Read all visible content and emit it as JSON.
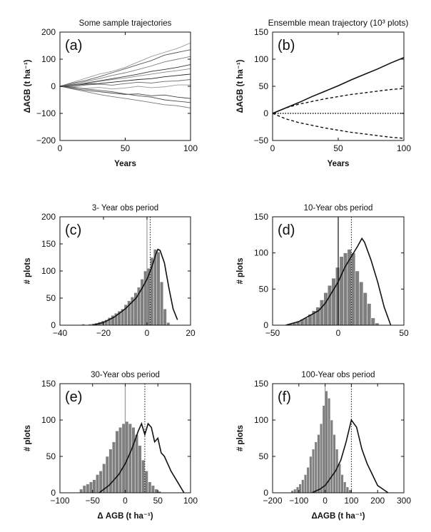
{
  "figure": {
    "background": "#ffffff",
    "bar_color": "#7f7f7f"
  },
  "chart_data": [
    {
      "id": "a",
      "type": "line",
      "title": "Some sample trajectories",
      "panel_label": "(a)",
      "xlabel": "Years",
      "ylabel": "ΔAGB (t ha⁻¹)",
      "xlim": [
        0,
        100
      ],
      "ylim": [
        -200,
        200
      ],
      "xticks": [
        0,
        50,
        100
      ],
      "yticks": [
        -200,
        -100,
        0,
        100,
        200
      ],
      "x": [
        0,
        10,
        20,
        30,
        40,
        50,
        60,
        70,
        80,
        90,
        100
      ],
      "series": [
        {
          "values": [
            0,
            15,
            30,
            45,
            55,
            70,
            90,
            110,
            125,
            140,
            160
          ]
        },
        {
          "values": [
            0,
            12,
            22,
            35,
            50,
            65,
            80,
            95,
            115,
            125,
            135
          ]
        },
        {
          "values": [
            0,
            8,
            18,
            28,
            40,
            50,
            62,
            75,
            90,
            100,
            110
          ]
        },
        {
          "values": [
            0,
            5,
            12,
            20,
            28,
            36,
            45,
            55,
            62,
            70,
            80
          ]
        },
        {
          "values": [
            0,
            6,
            10,
            18,
            25,
            30,
            38,
            45,
            52,
            58,
            65
          ]
        },
        {
          "values": [
            0,
            3,
            8,
            10,
            15,
            20,
            25,
            28,
            35,
            40,
            45
          ]
        },
        {
          "values": [
            0,
            -2,
            5,
            8,
            4,
            10,
            15,
            12,
            18,
            20,
            25
          ]
        },
        {
          "values": [
            0,
            -5,
            -8,
            -4,
            -10,
            -6,
            0,
            -5,
            -2,
            5,
            5
          ]
        },
        {
          "values": [
            0,
            -8,
            -15,
            -20,
            -25,
            -30,
            -28,
            -35,
            -32,
            -40,
            -45
          ]
        },
        {
          "values": [
            0,
            -10,
            -20,
            -30,
            -38,
            -45,
            -52,
            -60,
            -68,
            -72,
            -80
          ]
        },
        {
          "values": [
            0,
            -3,
            -10,
            -15,
            -20,
            -28,
            -35,
            -40,
            -50,
            -55,
            -60
          ]
        }
      ]
    },
    {
      "id": "b",
      "type": "line",
      "title": "Ensemble mean trajectory (10³ plots)",
      "panel_label": "(b)",
      "xlabel": "Years",
      "ylabel": "ΔAGB (t ha⁻¹)",
      "xlim": [
        0,
        100
      ],
      "ylim": [
        -50,
        150
      ],
      "xticks": [
        0,
        50,
        100
      ],
      "yticks": [
        -50,
        0,
        50,
        100,
        150
      ],
      "x": [
        0,
        10,
        20,
        30,
        40,
        50,
        60,
        70,
        80,
        90,
        100
      ],
      "series": [
        {
          "style": "solid",
          "values": [
            0,
            10,
            20,
            31,
            41,
            51,
            62,
            72,
            82,
            93,
            103
          ]
        },
        {
          "style": "dashed",
          "values": [
            0,
            10,
            17,
            22,
            27,
            31,
            35,
            38,
            41,
            44,
            46
          ]
        },
        {
          "style": "dotted",
          "values": [
            0,
            0,
            0,
            0,
            0,
            0,
            0,
            0,
            0,
            0,
            0
          ]
        },
        {
          "style": "dashed",
          "values": [
            0,
            -10,
            -17,
            -22,
            -27,
            -31,
            -35,
            -38,
            -41,
            -44,
            -46
          ]
        }
      ]
    },
    {
      "id": "c",
      "type": "bar",
      "title": "3- Year obs period",
      "panel_label": "(c)",
      "xlabel": "",
      "ylabel": "# plots",
      "xlim": [
        -40,
        20
      ],
      "ylim": [
        0,
        200
      ],
      "xticks": [
        -40,
        -20,
        0,
        20
      ],
      "yticks": [
        0,
        50,
        100,
        150,
        200
      ],
      "bin_width": 1.5,
      "bins": [
        -30,
        -28.5,
        -27,
        -25.5,
        -24,
        -22.5,
        -21,
        -19.5,
        -18,
        -16.5,
        -15,
        -13.5,
        -12,
        -10.5,
        -9,
        -7.5,
        -6,
        -4.5,
        -3,
        -1.5,
        0,
        1.5,
        3,
        4.5,
        6,
        7.5,
        9
      ],
      "values": [
        2,
        1,
        2,
        3,
        4,
        6,
        8,
        10,
        14,
        18,
        22,
        26,
        30,
        38,
        45,
        52,
        60,
        70,
        85,
        100,
        105,
        125,
        140,
        135,
        80,
        30,
        5
      ],
      "curve": {
        "x": [
          -25,
          -20,
          -15,
          -10,
          -5,
          -2,
          0,
          2,
          4,
          5,
          6,
          8,
          10,
          12,
          14
        ],
        "y": [
          0,
          5,
          15,
          30,
          50,
          70,
          85,
          105,
          130,
          140,
          138,
          115,
          70,
          30,
          10
        ]
      },
      "vlines": [
        {
          "x": 0,
          "style": "solid-gray"
        },
        {
          "x": 1.5,
          "style": "dotted"
        }
      ]
    },
    {
      "id": "d",
      "type": "bar",
      "title": "10-Year obs period",
      "panel_label": "(d)",
      "xlabel": "",
      "ylabel": "# plots",
      "xlim": [
        -50,
        50
      ],
      "ylim": [
        0,
        150
      ],
      "xticks": [
        -50,
        0,
        50
      ],
      "yticks": [
        0,
        50,
        100,
        150
      ],
      "bin_width": 3,
      "bins": [
        -38,
        -35,
        -32,
        -29,
        -26,
        -23,
        -20,
        -17,
        -14,
        -11,
        -8,
        -5,
        -2,
        1,
        4,
        7,
        10,
        13,
        16,
        19,
        22,
        25,
        28
      ],
      "values": [
        2,
        3,
        5,
        8,
        10,
        15,
        20,
        25,
        35,
        45,
        55,
        65,
        80,
        95,
        100,
        105,
        100,
        75,
        60,
        45,
        30,
        10,
        3
      ],
      "curve": {
        "x": [
          -40,
          -30,
          -20,
          -15,
          -10,
          -5,
          0,
          5,
          10,
          15,
          18,
          20,
          25,
          30,
          35,
          40
        ],
        "y": [
          0,
          5,
          15,
          20,
          30,
          45,
          60,
          80,
          95,
          110,
          120,
          115,
          90,
          60,
          25,
          0
        ]
      },
      "vlines": [
        {
          "x": 0,
          "style": "solid-black"
        },
        {
          "x": 10,
          "style": "dotted"
        }
      ]
    },
    {
      "id": "e",
      "type": "bar",
      "title": "30-Year obs period",
      "panel_label": "(e)",
      "xlabel": "Δ AGB (t ha⁻¹)",
      "ylabel": "# plots",
      "xlim": [
        -100,
        100
      ],
      "ylim": [
        0,
        150
      ],
      "xticks": [
        -100,
        -50,
        0,
        50,
        100
      ],
      "yticks": [
        0,
        50,
        100,
        150
      ],
      "bin_width": 5,
      "bins": [
        -70,
        -65,
        -60,
        -55,
        -50,
        -45,
        -40,
        -35,
        -30,
        -25,
        -20,
        -15,
        -10,
        -5,
        0,
        5,
        10,
        15,
        20,
        25,
        30,
        35,
        40,
        45,
        50
      ],
      "values": [
        5,
        10,
        12,
        15,
        18,
        25,
        30,
        40,
        50,
        60,
        70,
        85,
        90,
        95,
        98,
        95,
        90,
        80,
        65,
        45,
        30,
        15,
        10,
        5,
        2
      ],
      "curve": {
        "x": [
          -40,
          -25,
          -10,
          0,
          10,
          20,
          25,
          30,
          35,
          40,
          45,
          50,
          55,
          60,
          70,
          80,
          90
        ],
        "y": [
          0,
          10,
          25,
          40,
          60,
          85,
          95,
          80,
          95,
          90,
          70,
          75,
          55,
          50,
          30,
          15,
          0
        ]
      },
      "vlines": [
        {
          "x": 0,
          "style": "solid-gray"
        },
        {
          "x": 30,
          "style": "dotted"
        }
      ]
    },
    {
      "id": "f",
      "type": "bar",
      "title": "100-Year obs period",
      "panel_label": "(f)",
      "xlabel": "ΔAGB (t ha⁻¹)",
      "ylabel": "# plots",
      "xlim": [
        -200,
        300
      ],
      "ylim": [
        0,
        150
      ],
      "xticks": [
        -200,
        -100,
        0,
        100,
        200,
        300
      ],
      "yticks": [
        0,
        50,
        100,
        150
      ],
      "bin_width": 10,
      "bins": [
        -130,
        -120,
        -110,
        -100,
        -90,
        -80,
        -70,
        -60,
        -50,
        -40,
        -30,
        -20,
        -10,
        0,
        10,
        20,
        30,
        40,
        50,
        60,
        70,
        80,
        90
      ],
      "values": [
        3,
        5,
        8,
        12,
        18,
        25,
        35,
        50,
        60,
        70,
        80,
        95,
        120,
        140,
        130,
        100,
        80,
        60,
        40,
        25,
        15,
        8,
        4
      ],
      "curve": {
        "x": [
          -50,
          -20,
          0,
          20,
          40,
          60,
          80,
          100,
          120,
          140,
          160,
          180,
          200,
          220,
          240
        ],
        "y": [
          0,
          5,
          10,
          20,
          30,
          45,
          70,
          100,
          90,
          60,
          40,
          25,
          10,
          5,
          0
        ]
      },
      "vlines": [
        {
          "x": 0,
          "style": "solid-gray"
        },
        {
          "x": 100,
          "style": "dotted"
        }
      ]
    }
  ]
}
